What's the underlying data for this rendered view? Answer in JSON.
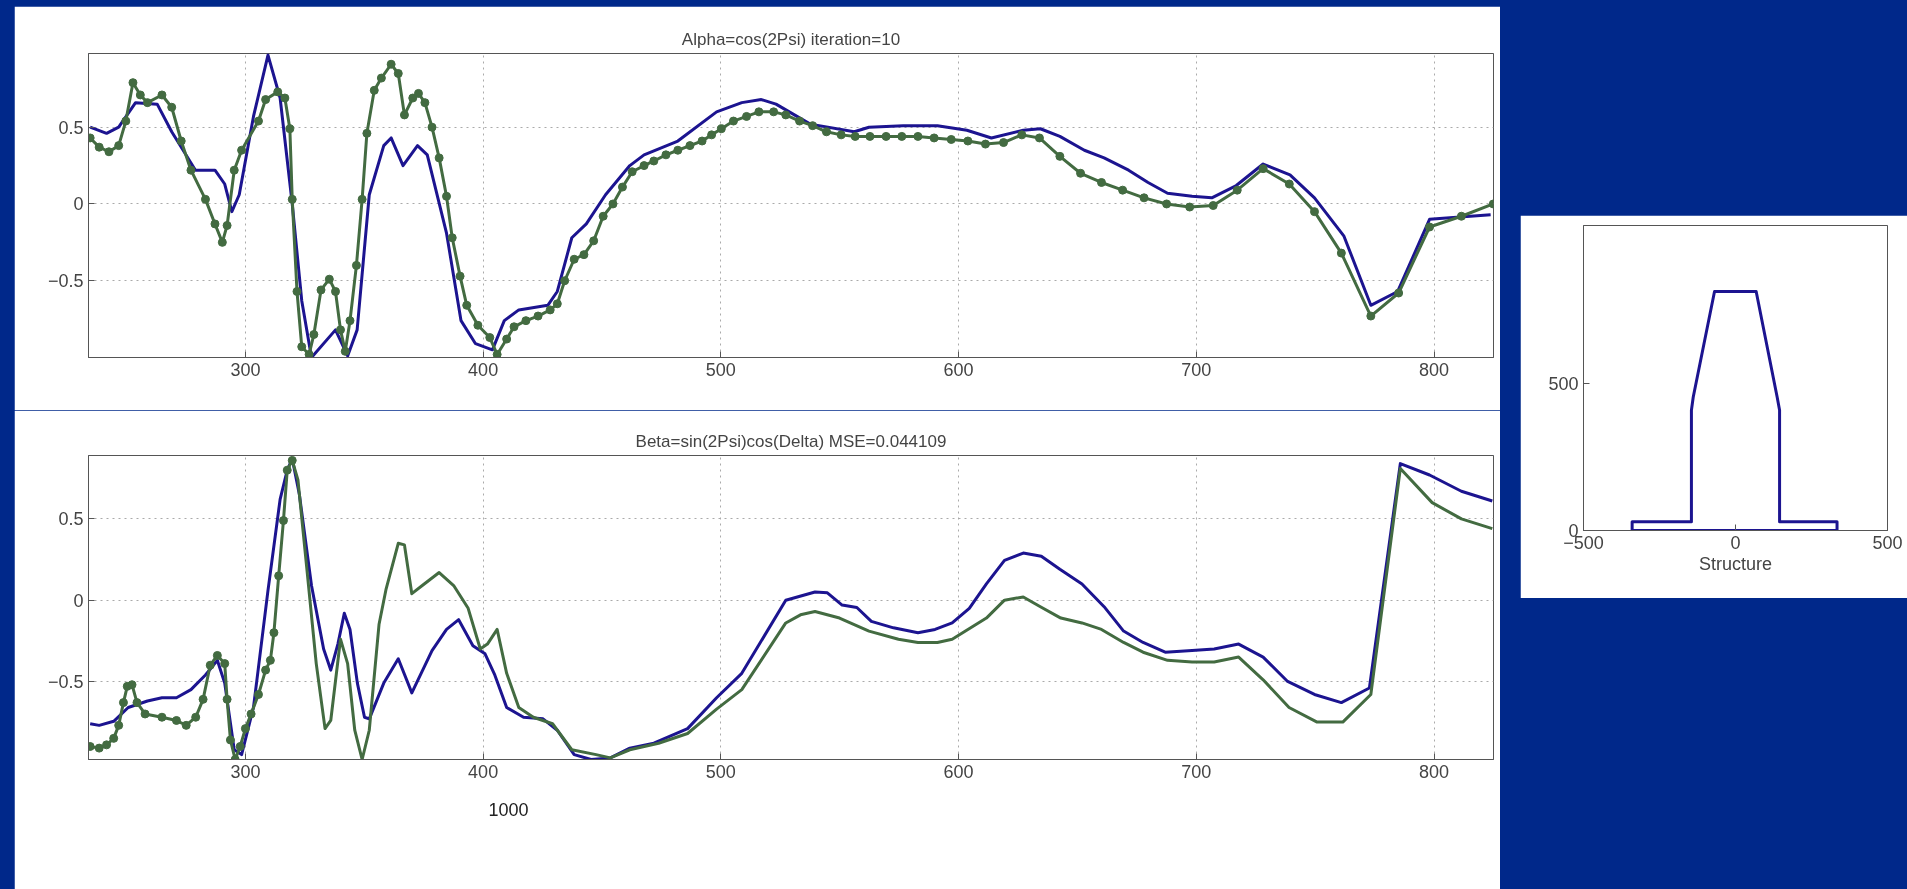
{
  "chart_data": [
    {
      "type": "line",
      "title": "Alpha=cos(2Psi) iteration=10",
      "xlim": [
        234,
        825
      ],
      "ylim": [
        -1.0,
        0.98
      ],
      "xticks": [
        300,
        400,
        500,
        600,
        700,
        800
      ],
      "yticks": [
        -0.5,
        0,
        0.5
      ],
      "grid": true,
      "series": [
        {
          "color": "#1c1490",
          "x": [
            234.7,
            241.6,
            246.7,
            253.8,
            262.9,
            269,
            279,
            287.2,
            291.3,
            294.3,
            297.4,
            303.4,
            309.5,
            314.6,
            319.7,
            323.7,
            327.8,
            337.9,
            343,
            347,
            352.1,
            358.2,
            361.3,
            366.3,
            372.4,
            376.5,
            384.6,
            390.7,
            396.8,
            403.9,
            408.9,
            415,
            427.2,
            431.2,
            437.3,
            443.4,
            451.5,
            461.7,
            467.7,
            481.9,
            498.2,
            508.8,
            517,
            523.2,
            537.6,
            556.1,
            562.3,
            576.7,
            591.1,
            603.5,
            613.8,
            627.2,
            634.4,
            642.6,
            652.9,
            661.2,
            671.5,
            679.7,
            687.9,
            698.2,
            706.5,
            716.8,
            728.1,
            739.4,
            749.7,
            762.1,
            773.4,
            784.7,
            798.1,
            823.8
          ],
          "values": [
            0.5,
            0.46,
            0.5,
            0.66,
            0.65,
            0.47,
            0.22,
            0.22,
            0.13,
            -0.05,
            0.06,
            0.57,
            0.97,
            0.69,
            0,
            -0.63,
            -1.0,
            -0.82,
            -0.99,
            -0.82,
            0.06,
            0.38,
            0.43,
            0.25,
            0.38,
            0.32,
            -0.19,
            -0.76,
            -0.91,
            -0.95,
            -0.76,
            -0.69,
            -0.66,
            -0.57,
            -0.22,
            -0.13,
            0.06,
            0.25,
            0.32,
            0.41,
            0.6,
            0.66,
            0.68,
            0.65,
            0.52,
            0.47,
            0.5,
            0.51,
            0.51,
            0.48,
            0.43,
            0.48,
            0.49,
            0.44,
            0.35,
            0.3,
            0.22,
            0.14,
            0.07,
            0.05,
            0.04,
            0.12,
            0.26,
            0.19,
            0.04,
            -0.21,
            -0.66,
            -0.57,
            -0.1,
            -0.07
          ]
        },
        {
          "color": "#436b41",
          "marker": "circle",
          "x": [
            234.7,
            238.5,
            242.6,
            246.7,
            249.7,
            252.7,
            255.8,
            258.8,
            264.9,
            269,
            273,
            277.1,
            283.2,
            287.2,
            290.3,
            292.3,
            295.3,
            298.4,
            305.5,
            308.5,
            313.6,
            316.6,
            318.7,
            319.7,
            321.7,
            323.7,
            326.8,
            328.8,
            331.8,
            335.3,
            337.9,
            340,
            342,
            344,
            346.7,
            349.1,
            351.1,
            354.2,
            357.2,
            361.3,
            364.3,
            366.9,
            370.4,
            372.8,
            375.5,
            378.5,
            381.5,
            384.6,
            387,
            390.3,
            393.1,
            397.8,
            402.8,
            405.9,
            409.9,
            413,
            418,
            423.1,
            428.2,
            431.2,
            434.3,
            438.3,
            442.4,
            446.5,
            450.5,
            454.6,
            458.6,
            462.7,
            467.7,
            471.8,
            476.9,
            481.9,
            487,
            492.1,
            496.1,
            500.2,
            505.3,
            510.8,
            516,
            522.2,
            527.3,
            533.1,
            538.6,
            544.4,
            550.6,
            556.5,
            562.7,
            569.5,
            576.1,
            582.9,
            589.7,
            596.9,
            603.9,
            611.3,
            618.9,
            626.6,
            634,
            642.6,
            651.3,
            660.1,
            669,
            678,
            687.5,
            697.2,
            707.1,
            717.2,
            728.1,
            739.1,
            749.7,
            761,
            773.4,
            785.1,
            798.1,
            811.5,
            824.9
          ],
          "values": [
            0.43,
            0.37,
            0.34,
            0.38,
            0.54,
            0.79,
            0.71,
            0.66,
            0.71,
            0.63,
            0.41,
            0.22,
            0.03,
            -0.13,
            -0.25,
            -0.14,
            0.22,
            0.35,
            0.54,
            0.68,
            0.73,
            0.69,
            0.49,
            0.03,
            -0.57,
            -0.93,
            -0.98,
            -0.85,
            -0.56,
            -0.49,
            -0.57,
            -0.82,
            -0.96,
            -0.76,
            -0.4,
            0.03,
            0.46,
            0.74,
            0.82,
            0.91,
            0.85,
            0.58,
            0.69,
            0.72,
            0.66,
            0.5,
            0.3,
            0.05,
            -0.22,
            -0.47,
            -0.66,
            -0.79,
            -0.87,
            -0.98,
            -0.88,
            -0.8,
            -0.76,
            -0.73,
            -0.69,
            -0.65,
            -0.5,
            -0.36,
            -0.33,
            -0.24,
            -0.08,
            0.0,
            0.11,
            0.21,
            0.25,
            0.28,
            0.32,
            0.35,
            0.38,
            0.41,
            0.45,
            0.49,
            0.54,
            0.57,
            0.6,
            0.6,
            0.58,
            0.54,
            0.51,
            0.47,
            0.45,
            0.44,
            0.44,
            0.44,
            0.44,
            0.44,
            0.43,
            0.42,
            0.41,
            0.39,
            0.4,
            0.45,
            0.43,
            0.31,
            0.2,
            0.14,
            0.09,
            0.04,
            0.0,
            -0.02,
            -0.01,
            0.09,
            0.23,
            0.13,
            -0.05,
            -0.32,
            -0.73,
            -0.58,
            -0.15,
            -0.08,
            0.0
          ]
        }
      ]
    },
    {
      "type": "line",
      "title": "Beta=sin(2Psi)cos(Delta) MSE=0.044109",
      "xlim": [
        234,
        825
      ],
      "ylim": [
        -0.98,
        0.89
      ],
      "xticks": [
        300,
        400,
        500,
        600,
        700,
        800
      ],
      "yticks": [
        -0.5,
        0,
        0.5
      ],
      "grid": true,
      "annotations": [
        "1000"
      ],
      "series": [
        {
          "color": "#1c1490",
          "x": [
            234.7,
            238.5,
            244.6,
            250.7,
            258.8,
            264.9,
            271,
            277.1,
            283.2,
            288.2,
            291.3,
            295.3,
            298.4,
            303.4,
            309.5,
            314.6,
            317.6,
            319.7,
            322.7,
            327.8,
            332.9,
            335.9,
            338.9,
            341.6,
            344,
            347.1,
            350.1,
            352.1,
            358.2,
            364.3,
            370,
            378.5,
            384.6,
            389.7,
            395.7,
            400.8,
            404.9,
            409.9,
            417,
            425.2,
            431.2,
            438.3,
            445.4,
            453.5,
            461.7,
            471.8,
            486,
            498.2,
            508.8,
            527.3,
            539.6,
            544.8,
            551,
            557.2,
            563.3,
            572.6,
            582.9,
            590.1,
            597.3,
            604.5,
            611.7,
            619.3,
            627.2,
            634.8,
            642.6,
            651.9,
            661.2,
            669.4,
            677.6,
            686.9,
            698.2,
            707.5,
            717.8,
            728.1,
            738.4,
            749.7,
            761,
            772.8,
            785.8,
            798.1,
            811.5,
            824.5
          ],
          "values": [
            -0.76,
            -0.77,
            -0.745,
            -0.66,
            -0.62,
            -0.6,
            -0.6,
            -0.55,
            -0.46,
            -0.37,
            -0.51,
            -0.92,
            -0.95,
            -0.66,
            0.06,
            0.62,
            0.8,
            0.87,
            0.65,
            0.09,
            -0.3,
            -0.43,
            -0.27,
            -0.08,
            -0.18,
            -0.51,
            -0.72,
            -0.73,
            -0.51,
            -0.36,
            -0.57,
            -0.31,
            -0.18,
            -0.12,
            -0.28,
            -0.33,
            -0.46,
            -0.66,
            -0.72,
            -0.73,
            -0.8,
            -0.95,
            -0.98,
            -0.97,
            -0.91,
            -0.88,
            -0.79,
            -0.6,
            -0.45,
            0.0,
            0.05,
            0.045,
            -0.03,
            -0.045,
            -0.13,
            -0.17,
            -0.2,
            -0.18,
            -0.14,
            -0.05,
            0.1,
            0.245,
            0.29,
            0.27,
            0.19,
            0.1,
            -0.04,
            -0.19,
            -0.26,
            -0.32,
            -0.31,
            -0.3,
            -0.27,
            -0.35,
            -0.5,
            -0.58,
            -0.63,
            -0.54,
            0.84,
            0.77,
            0.67,
            0.61
          ]
        },
        {
          "color": "#436b41",
          "marker": "circle",
          "x": [
            234.7,
            238.5,
            241.6,
            244.6,
            246.7,
            248.7,
            250.3,
            252.3,
            254.4,
            257.8,
            264.9,
            271,
            275.1,
            279.1,
            282.2,
            285.2,
            288.2,
            291.3,
            292.3,
            293.7,
            295.7,
            297.8,
            300,
            302.4,
            305.5,
            308.5,
            310.5,
            312,
            314,
            316,
            317.6,
            319.7
          ],
          "values": [
            -0.9,
            -0.91,
            -0.89,
            -0.85,
            -0.77,
            -0.63,
            -0.53,
            -0.52,
            -0.63,
            -0.7,
            -0.72,
            -0.74,
            -0.77,
            -0.72,
            -0.61,
            -0.4,
            -0.34,
            -0.39,
            -0.61,
            -0.86,
            -0.98,
            -0.9,
            -0.79,
            -0.7,
            -0.58,
            -0.43,
            -0.37,
            -0.2,
            0.15,
            0.49,
            0.8,
            0.86
          ]
        },
        {
          "color": "#436b41",
          "x": [
            319.7,
            322.1,
            325.8,
            329.8,
            333.5,
            335.9,
            340,
            343,
            346,
            349.1,
            352.1,
            356.2,
            359.2,
            364.3,
            366.9,
            370,
            374.4,
            381.5,
            387.6,
            393.7,
            398.8,
            401.8,
            405.9,
            409.9,
            415,
            421.1,
            429.2,
            437.3,
            447.5,
            453.5,
            461.7,
            473.8,
            486,
            498.2,
            508.8,
            527.3,
            533.5,
            539.6,
            549.9,
            562.3,
            574.7,
            582.9,
            591.1,
            597.3,
            611.7,
            619.3,
            627.2,
            634.4,
            643,
            651.9,
            660.1,
            669.4,
            677.6,
            687.9,
            698.2,
            707.5,
            717.8,
            728.1,
            739,
            750.8,
            761.6,
            773.4,
            785.8,
            799.2,
            811.5,
            824.5
          ],
          "values": [
            0.86,
            0.74,
            0.2,
            -0.39,
            -0.79,
            -0.74,
            -0.24,
            -0.39,
            -0.8,
            -0.98,
            -0.8,
            -0.15,
            0.07,
            0.35,
            0.34,
            0.04,
            0.09,
            0.17,
            0.09,
            -0.05,
            -0.3,
            -0.27,
            -0.18,
            -0.45,
            -0.66,
            -0.72,
            -0.76,
            -0.92,
            -0.95,
            -0.97,
            -0.92,
            -0.88,
            -0.82,
            -0.67,
            -0.55,
            -0.14,
            -0.09,
            -0.07,
            -0.11,
            -0.19,
            -0.24,
            -0.26,
            -0.26,
            -0.24,
            -0.11,
            0.0,
            0.02,
            -0.04,
            -0.11,
            -0.14,
            -0.18,
            -0.26,
            -0.32,
            -0.37,
            -0.38,
            -0.38,
            -0.35,
            -0.49,
            -0.66,
            -0.75,
            -0.75,
            -0.58,
            0.81,
            0.6,
            0.5,
            0.44
          ]
        }
      ]
    },
    {
      "type": "line",
      "xlabel": "Structure",
      "xlim": [
        -500,
        500
      ],
      "ylim": [
        0,
        1040
      ],
      "xticks": [
        -500,
        0,
        500
      ],
      "yticks": [
        0,
        500
      ],
      "series": [
        {
          "color": "#1c1490",
          "x": [
            -340,
            -340,
            -145,
            -145,
            -139,
            -69,
            68,
            137,
            145,
            145,
            334,
            334
          ],
          "values": [
            0,
            30,
            30,
            410,
            455,
            815,
            815,
            455,
            410,
            30,
            30,
            0
          ]
        },
        {
          "color": "#1c1490",
          "x": [
            334,
            -340
          ],
          "values": [
            0,
            0
          ]
        }
      ]
    }
  ]
}
